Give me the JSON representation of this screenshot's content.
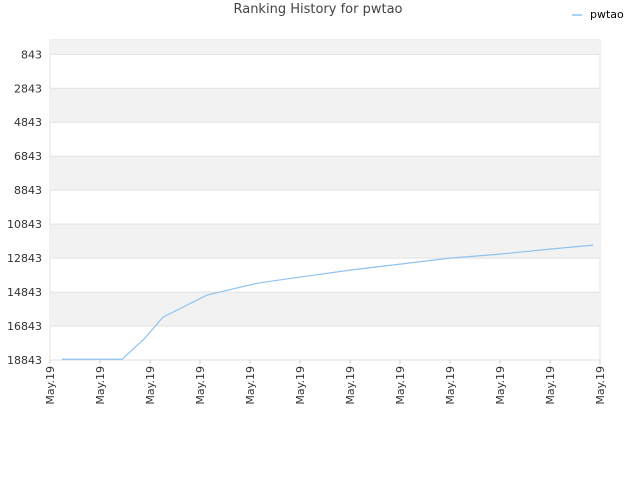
{
  "chart_data": {
    "type": "line",
    "title": "Ranking History for pwtao",
    "x": [
      0.24,
      1.44,
      1.9,
      2.26,
      3.14,
      4.16,
      5,
      6,
      7,
      8,
      9,
      10,
      10.86
    ],
    "series": [
      {
        "name": "pwtao",
        "color": "#8fc3ef",
        "values": [
          18800,
          18800,
          17549,
          16314,
          15019,
          14314,
          13960,
          13549,
          13196,
          12843,
          12608,
          12314,
          12078
        ]
      }
    ],
    "xlim": [
      0,
      11
    ],
    "xticks": [
      {
        "value": 0,
        "label": "May.19"
      },
      {
        "value": 1,
        "label": "May.19"
      },
      {
        "value": 2,
        "label": "May.19"
      },
      {
        "value": 3,
        "label": "May.19"
      },
      {
        "value": 4,
        "label": "May.19"
      },
      {
        "value": 5,
        "label": "May.19"
      },
      {
        "value": 6,
        "label": "May.19"
      },
      {
        "value": 7,
        "label": "May.19"
      },
      {
        "value": 8,
        "label": "May.19"
      },
      {
        "value": 9,
        "label": "May.19"
      },
      {
        "value": 10,
        "label": "May.19"
      },
      {
        "value": 11,
        "label": "May.19"
      }
    ],
    "ylim": [
      18843,
      0
    ],
    "yticks": [
      843,
      2843,
      4843,
      6843,
      8843,
      10843,
      12843,
      14843,
      16843,
      18843
    ],
    "grid": true,
    "legend": "top-right"
  }
}
